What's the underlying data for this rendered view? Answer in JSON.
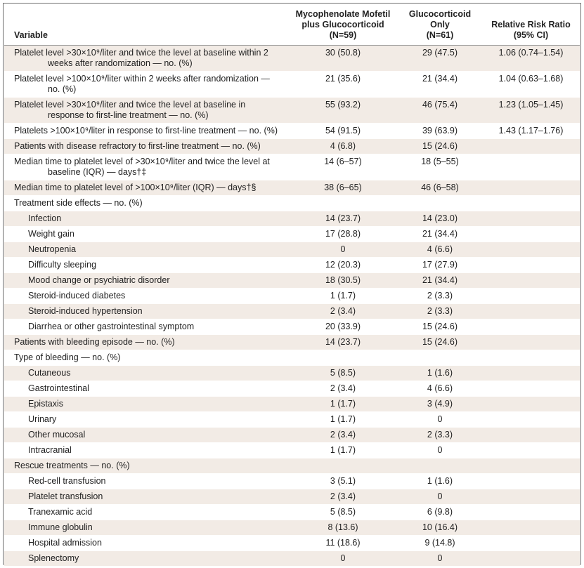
{
  "header": {
    "variable": "Variable",
    "col_a_line1": "Mycophenolate Mofetil",
    "col_a_line2": "plus Glucocorticoid",
    "col_a_n": "(N=59)",
    "col_b_line1": "Glucocorticoid",
    "col_b_line2": "Only",
    "col_b_n": "(N=61)",
    "col_c_line1": "Relative Risk Ratio",
    "col_c_line2": "(95% CI)"
  },
  "rows": [
    {
      "label": "Platelet level >30×10⁹/liter and twice the level at baseline within 2 weeks after randomization — no. (%)",
      "a": "30 (50.8)",
      "b": "29 (47.5)",
      "c": "1.06 (0.74–1.54)"
    },
    {
      "label": "Platelet level >100×10⁹/liter within 2 weeks after randomization — no. (%)",
      "a": "21 (35.6)",
      "b": "21 (34.4)",
      "c": "1.04 (0.63–1.68)"
    },
    {
      "label": "Platelet level >30×10⁹/liter and twice the level at baseline in response to first-line treatment — no. (%)",
      "a": "55 (93.2)",
      "b": "46 (75.4)",
      "c": "1.23 (1.05–1.45)"
    },
    {
      "label": "Platelets >100×10⁹/liter in response to first-line treatment — no. (%)",
      "a": "54 (91.5)",
      "b": "39 (63.9)",
      "c": "1.43 (1.17–1.76)"
    },
    {
      "label": "Patients with disease refractory to first-line treatment — no. (%)",
      "a": "4 (6.8)",
      "b": "15 (24.6)",
      "c": ""
    },
    {
      "label": "Median time to platelet level of >30×10⁹/liter and twice the level at baseline (IQR) — days†‡",
      "a": "14 (6–57)",
      "b": "18 (5–55)",
      "c": ""
    },
    {
      "label": "Median time to platelet level of >100×10⁹/liter (IQR) — days†§",
      "a": "38 (6–65)",
      "b": "46 (6–58)",
      "c": ""
    },
    {
      "label": "Treatment side effects — no. (%)",
      "a": "",
      "b": "",
      "c": ""
    },
    {
      "label": "Infection",
      "a": "14 (23.7)",
      "b": "14 (23.0)",
      "c": ""
    },
    {
      "label": "Weight gain",
      "a": "17 (28.8)",
      "b": "21 (34.4)",
      "c": ""
    },
    {
      "label": "Neutropenia",
      "a": "0",
      "b": "4 (6.6)",
      "c": ""
    },
    {
      "label": "Difficulty sleeping",
      "a": "12 (20.3)",
      "b": "17 (27.9)",
      "c": ""
    },
    {
      "label": "Mood change or psychiatric disorder",
      "a": "18 (30.5)",
      "b": "21 (34.4)",
      "c": ""
    },
    {
      "label": "Steroid-induced diabetes",
      "a": "1 (1.7)",
      "b": "2 (3.3)",
      "c": ""
    },
    {
      "label": "Steroid-induced hypertension",
      "a": "2 (3.4)",
      "b": "2 (3.3)",
      "c": ""
    },
    {
      "label": "Diarrhea or other gastrointestinal symptom",
      "a": "20 (33.9)",
      "b": "15 (24.6)",
      "c": ""
    },
    {
      "label": "Patients with bleeding episode — no. (%)",
      "a": "14 (23.7)",
      "b": "15 (24.6)",
      "c": ""
    },
    {
      "label": "Type of bleeding — no. (%)",
      "a": "",
      "b": "",
      "c": ""
    },
    {
      "label": "Cutaneous",
      "a": "5 (8.5)",
      "b": "1 (1.6)",
      "c": ""
    },
    {
      "label": "Gastrointestinal",
      "a": "2 (3.4)",
      "b": "4 (6.6)",
      "c": ""
    },
    {
      "label": "Epistaxis",
      "a": "1 (1.7)",
      "b": "3 (4.9)",
      "c": ""
    },
    {
      "label": "Urinary",
      "a": "1 (1.7)",
      "b": "0",
      "c": ""
    },
    {
      "label": "Other mucosal",
      "a": "2 (3.4)",
      "b": "2 (3.3)",
      "c": ""
    },
    {
      "label": "Intracranial",
      "a": "1 (1.7)",
      "b": "0",
      "c": ""
    },
    {
      "label": "Rescue treatments — no. (%)",
      "a": "",
      "b": "",
      "c": ""
    },
    {
      "label": "Red-cell transfusion",
      "a": "3 (5.1)",
      "b": "1 (1.6)",
      "c": ""
    },
    {
      "label": "Platelet transfusion",
      "a": "2 (3.4)",
      "b": "0",
      "c": ""
    },
    {
      "label": "Tranexamic acid",
      "a": "5 (8.5)",
      "b": "6 (9.8)",
      "c": ""
    },
    {
      "label": "Immune globulin",
      "a": "8 (13.6)",
      "b": "10 (16.4)",
      "c": ""
    },
    {
      "label": "Hospital admission",
      "a": "11 (18.6)",
      "b": "9 (14.8)",
      "c": ""
    },
    {
      "label": "Splenectomy",
      "a": "0",
      "b": "0",
      "c": ""
    }
  ]
}
